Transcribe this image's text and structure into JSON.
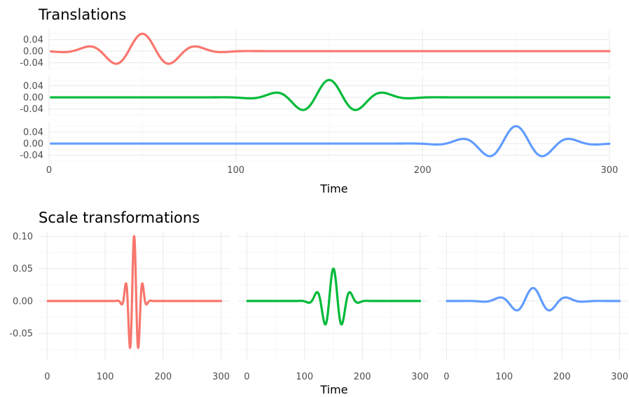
{
  "chart_data": [
    {
      "type": "line",
      "title": "Translations",
      "xlabel": "Time",
      "ylabel": "",
      "xlim": [
        0,
        300
      ],
      "x_ticks": [
        "0",
        "100",
        "200",
        "300"
      ],
      "y_ticks": [
        "0.04",
        "0.00",
        "-0.04"
      ],
      "grid": true,
      "facets": [
        {
          "color": "#F8766D",
          "center": 50,
          "scale": 1,
          "amplitude": 0.06,
          "ylim": [
            -0.065,
            0.075
          ]
        },
        {
          "color": "#00BA38",
          "center": 150,
          "scale": 1,
          "amplitude": 0.06,
          "ylim": [
            -0.065,
            0.075
          ]
        },
        {
          "color": "#619CFF",
          "center": 250,
          "scale": 1,
          "amplitude": 0.06,
          "ylim": [
            -0.065,
            0.075
          ]
        }
      ]
    },
    {
      "type": "line",
      "title": "Scale transformations",
      "xlabel": "Time",
      "ylabel": "",
      "xlim": [
        0,
        300
      ],
      "x_ticks": [
        "0",
        "100",
        "200",
        "300"
      ],
      "y_ticks": [
        "0.10",
        "0.05",
        "0.00",
        "-0.05"
      ],
      "ylim": [
        -0.092,
        0.108
      ],
      "grid": true,
      "facets": [
        {
          "color": "#F8766D",
          "center": 150,
          "scale": 0.5,
          "amplitude": 0.1
        },
        {
          "color": "#00BA38",
          "center": 150,
          "scale": 1,
          "amplitude": 0.05
        },
        {
          "color": "#619CFF",
          "center": 150,
          "scale": 2,
          "amplitude": 0.02
        }
      ]
    }
  ]
}
